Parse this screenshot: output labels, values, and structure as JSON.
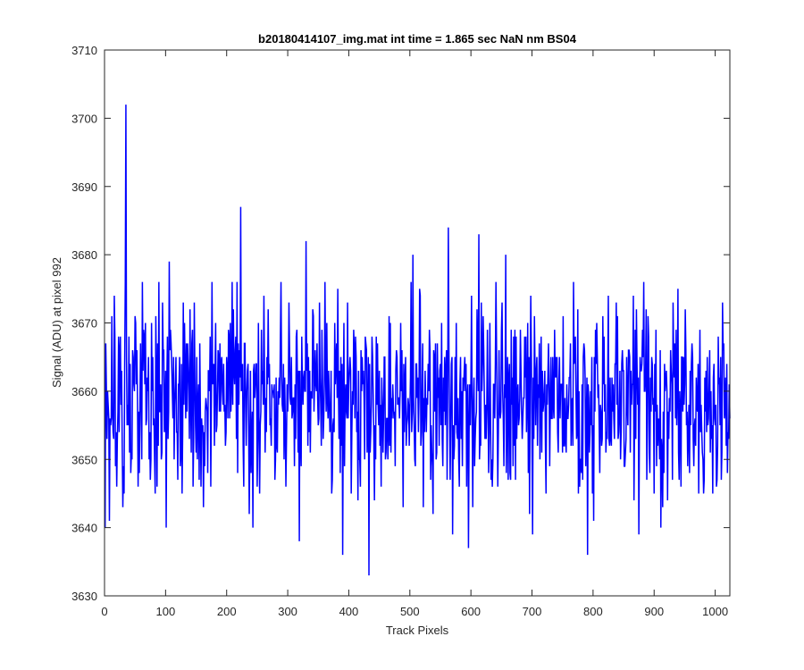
{
  "chart_data": {
    "type": "line",
    "title": "b20180414107_img.mat int time = 1.865 sec  NaN nm BS04",
    "xlabel": "Track Pixels",
    "ylabel": "Signal (ADU) at pixel 992",
    "xlim": [
      0,
      1024
    ],
    "ylim": [
      3630,
      3710
    ],
    "xticks": [
      0,
      100,
      200,
      300,
      400,
      500,
      600,
      700,
      800,
      900,
      1000
    ],
    "yticks": [
      3630,
      3640,
      3650,
      3660,
      3670,
      3680,
      3690,
      3700,
      3710
    ],
    "grid": false,
    "legend": "none",
    "line_color": "#0000ff",
    "series": [
      {
        "x_start": 1,
        "x_step": 1,
        "count": 1024,
        "mean": 3659,
        "noise_sd": 7.2,
        "seed": 992,
        "notable_points": [
          {
            "x": 1,
            "y": 3640
          },
          {
            "x": 35,
            "y": 3702
          },
          {
            "x": 30,
            "y": 3643
          },
          {
            "x": 62,
            "y": 3676
          },
          {
            "x": 101,
            "y": 3640
          },
          {
            "x": 106,
            "y": 3679
          },
          {
            "x": 223,
            "y": 3687
          },
          {
            "x": 243,
            "y": 3640
          },
          {
            "x": 319,
            "y": 3638
          },
          {
            "x": 330,
            "y": 3682
          },
          {
            "x": 361,
            "y": 3676
          },
          {
            "x": 390,
            "y": 3636
          },
          {
            "x": 433,
            "y": 3633
          },
          {
            "x": 505,
            "y": 3680
          },
          {
            "x": 563,
            "y": 3684
          },
          {
            "x": 570,
            "y": 3639
          },
          {
            "x": 596,
            "y": 3637
          },
          {
            "x": 613,
            "y": 3683
          },
          {
            "x": 657,
            "y": 3680
          },
          {
            "x": 701,
            "y": 3639
          },
          {
            "x": 791,
            "y": 3636
          },
          {
            "x": 799,
            "y": 3645
          },
          {
            "x": 911,
            "y": 3640
          },
          {
            "x": 941,
            "y": 3647
          },
          {
            "x": 1005,
            "y": 3668
          },
          {
            "x": 1024,
            "y": 3656
          }
        ]
      }
    ]
  }
}
